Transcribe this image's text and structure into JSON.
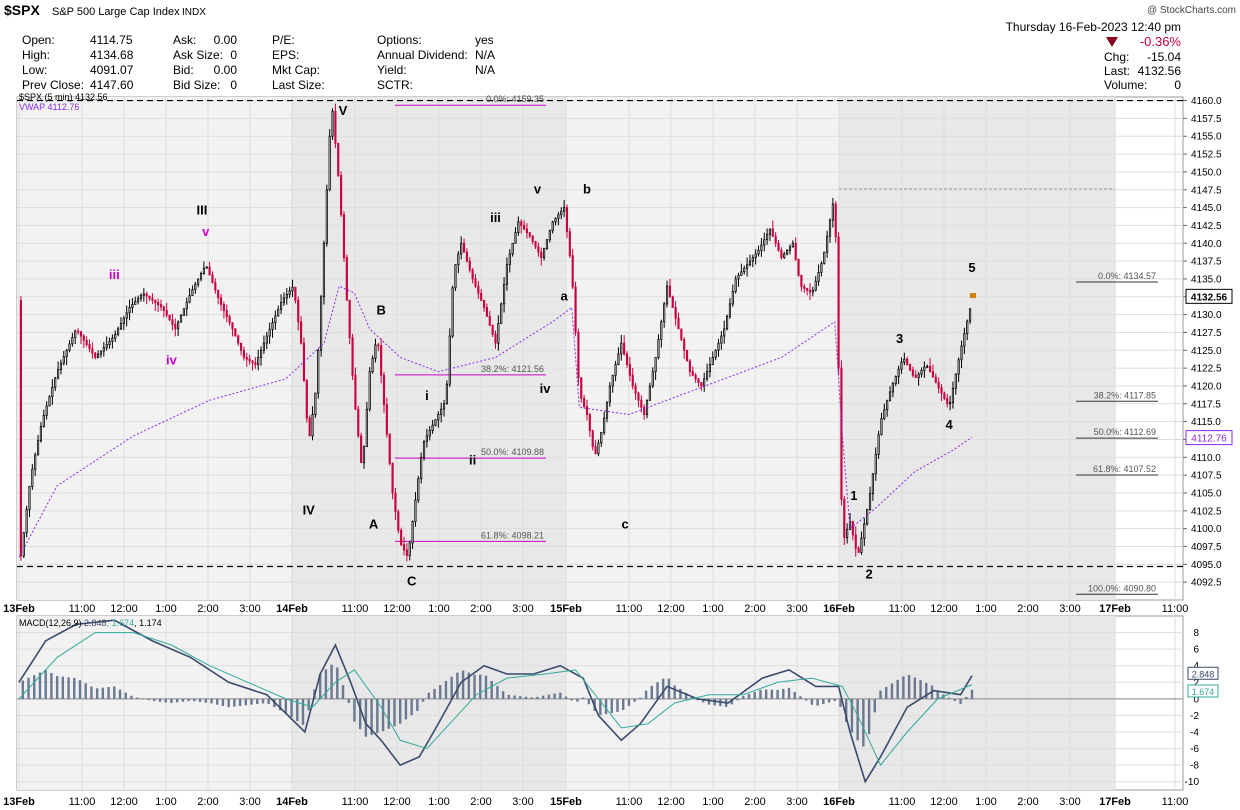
{
  "header": {
    "symbol": "$SPX",
    "name": "S&P 500 Large Cap Index",
    "exchange": "INDX",
    "watermark": "@ StockCharts.com",
    "datetime": "Thursday 16-Feb-2023 12:40 pm",
    "change_pct": "-0.36%",
    "chg_label": "Chg:",
    "chg_value": "-15.04",
    "last_label": "Last:",
    "last_value": "4132.56",
    "volume_label": "Volume:",
    "volume_value": "0",
    "stats": [
      {
        "label": "Open:",
        "value": "4114.75"
      },
      {
        "label": "High:",
        "value": "4134.68"
      },
      {
        "label": "Low:",
        "value": "4091.07"
      },
      {
        "label": "Prev Close:",
        "value": "4147.60"
      }
    ],
    "stats2": [
      {
        "label": "Ask:",
        "value": "0.00"
      },
      {
        "label": "Ask Size:",
        "value": "0"
      },
      {
        "label": "Bid:",
        "value": "0.00"
      },
      {
        "label": "Bid Size:",
        "value": "0"
      }
    ],
    "stats3": [
      {
        "label": "P/E:",
        "value": ""
      },
      {
        "label": "EPS:",
        "value": ""
      },
      {
        "label": "Mkt Cap:",
        "value": ""
      },
      {
        "label": "Last Size:",
        "value": ""
      }
    ],
    "stats4": [
      {
        "label": "Options:",
        "value": "yes"
      },
      {
        "label": "Annual Dividend:",
        "value": "N/A"
      },
      {
        "label": "Yield:",
        "value": "N/A"
      },
      {
        "label": "SCTR:",
        "value": ""
      }
    ]
  },
  "chart_data": {
    "type": "candlestick",
    "legend": [
      "$SPX (5 min) 4132.56",
      "VWAP 4112.76"
    ],
    "colors": {
      "up": "#000000",
      "down": "#c8003c",
      "vwap": "#8a2be2",
      "macd": "#3a4a6b",
      "signal": "#33aa99",
      "hist": "#6a7890",
      "fib": "#d000d0"
    },
    "price_axis": {
      "min": 4090,
      "max": 4160.5,
      "ticks": [
        "4092.5",
        "4095.0",
        "4097.5",
        "4100.0",
        "4102.5",
        "4105.0",
        "4107.5",
        "4110.0",
        "4112.5",
        "4115.0",
        "4117.5",
        "4120.0",
        "4122.5",
        "4125.0",
        "4127.5",
        "4130.0",
        "4132.5",
        "4135.0",
        "4137.5",
        "4140.0",
        "4142.5",
        "4145.0",
        "4147.5",
        "4150.0",
        "4152.5",
        "4155.0",
        "4157.5",
        "4160.0"
      ]
    },
    "last_price_label": "4132.56",
    "vwap_price_label": "4112.76",
    "x_labels": [
      "13Feb",
      "11:00",
      "12:00",
      "1:00",
      "2:00",
      "3:00",
      "14Feb",
      "11:00",
      "12:00",
      "1:00",
      "2:00",
      "3:00",
      "15Feb",
      "11:00",
      "12:00",
      "1:00",
      "2:00",
      "3:00",
      "16Feb",
      "11:00",
      "12:00",
      "1:00",
      "2:00",
      "3:00",
      "17Feb",
      "11:00"
    ],
    "h_lines": [
      4094.7,
      4160.0
    ],
    "prev_close_line": 4147.6,
    "price_path": [
      {
        "x": 0,
        "y": 4094
      },
      {
        "x": 6,
        "y": 4107
      },
      {
        "x": 12,
        "y": 4115
      },
      {
        "x": 20,
        "y": 4122
      },
      {
        "x": 30,
        "y": 4128
      },
      {
        "x": 40,
        "y": 4124
      },
      {
        "x": 50,
        "y": 4127
      },
      {
        "x": 58,
        "y": 4131
      },
      {
        "x": 65,
        "y": 4133
      },
      {
        "x": 75,
        "y": 4131
      },
      {
        "x": 82,
        "y": 4128
      },
      {
        "x": 90,
        "y": 4133
      },
      {
        "x": 98,
        "y": 4137
      },
      {
        "x": 105,
        "y": 4132
      },
      {
        "x": 112,
        "y": 4128
      },
      {
        "x": 118,
        "y": 4124
      },
      {
        "x": 124,
        "y": 4123
      },
      {
        "x": 130,
        "y": 4127
      },
      {
        "x": 138,
        "y": 4132
      },
      {
        "x": 144,
        "y": 4134
      },
      {
        "x": 148,
        "y": 4126
      },
      {
        "x": 152,
        "y": 4112
      },
      {
        "x": 156,
        "y": 4120
      },
      {
        "x": 160,
        "y": 4140
      },
      {
        "x": 164,
        "y": 4160
      },
      {
        "x": 168,
        "y": 4148
      },
      {
        "x": 172,
        "y": 4132
      },
      {
        "x": 176,
        "y": 4118
      },
      {
        "x": 180,
        "y": 4108
      },
      {
        "x": 184,
        "y": 4122
      },
      {
        "x": 188,
        "y": 4127
      },
      {
        "x": 192,
        "y": 4116
      },
      {
        "x": 196,
        "y": 4105
      },
      {
        "x": 200,
        "y": 4098
      },
      {
        "x": 204,
        "y": 4096
      },
      {
        "x": 208,
        "y": 4104
      },
      {
        "x": 212,
        "y": 4112
      },
      {
        "x": 218,
        "y": 4115
      },
      {
        "x": 224,
        "y": 4118
      },
      {
        "x": 228,
        "y": 4136
      },
      {
        "x": 232,
        "y": 4140
      },
      {
        "x": 238,
        "y": 4135
      },
      {
        "x": 244,
        "y": 4131
      },
      {
        "x": 250,
        "y": 4126
      },
      {
        "x": 256,
        "y": 4137
      },
      {
        "x": 262,
        "y": 4143
      },
      {
        "x": 268,
        "y": 4141
      },
      {
        "x": 274,
        "y": 4138
      },
      {
        "x": 280,
        "y": 4143
      },
      {
        "x": 286,
        "y": 4145
      },
      {
        "x": 290,
        "y": 4136
      },
      {
        "x": 294,
        "y": 4119
      },
      {
        "x": 298,
        "y": 4116
      },
      {
        "x": 302,
        "y": 4110
      },
      {
        "x": 306,
        "y": 4114
      },
      {
        "x": 310,
        "y": 4120
      },
      {
        "x": 316,
        "y": 4126
      },
      {
        "x": 322,
        "y": 4120
      },
      {
        "x": 328,
        "y": 4116
      },
      {
        "x": 334,
        "y": 4124
      },
      {
        "x": 340,
        "y": 4134
      },
      {
        "x": 346,
        "y": 4128
      },
      {
        "x": 352,
        "y": 4122
      },
      {
        "x": 358,
        "y": 4120
      },
      {
        "x": 364,
        "y": 4124
      },
      {
        "x": 370,
        "y": 4128
      },
      {
        "x": 376,
        "y": 4135
      },
      {
        "x": 382,
        "y": 4137
      },
      {
        "x": 388,
        "y": 4139
      },
      {
        "x": 394,
        "y": 4142
      },
      {
        "x": 400,
        "y": 4138
      },
      {
        "x": 406,
        "y": 4140
      },
      {
        "x": 410,
        "y": 4134
      },
      {
        "x": 416,
        "y": 4133
      },
      {
        "x": 422,
        "y": 4138
      },
      {
        "x": 428,
        "y": 4147
      },
      {
        "x": 432,
        "y": 4098
      },
      {
        "x": 436,
        "y": 4101
      },
      {
        "x": 440,
        "y": 4096
      },
      {
        "x": 446,
        "y": 4104
      },
      {
        "x": 452,
        "y": 4115
      },
      {
        "x": 458,
        "y": 4120
      },
      {
        "x": 464,
        "y": 4124
      },
      {
        "x": 470,
        "y": 4121
      },
      {
        "x": 476,
        "y": 4123
      },
      {
        "x": 482,
        "y": 4120
      },
      {
        "x": 488,
        "y": 4117
      },
      {
        "x": 494,
        "y": 4125
      },
      {
        "x": 500,
        "y": 4132
      }
    ],
    "vwap_path": [
      {
        "x": 0,
        "y": 4096
      },
      {
        "x": 20,
        "y": 4106
      },
      {
        "x": 60,
        "y": 4113
      },
      {
        "x": 100,
        "y": 4118
      },
      {
        "x": 140,
        "y": 4121
      },
      {
        "x": 160,
        "y": 4126
      },
      {
        "x": 168,
        "y": 4134
      },
      {
        "x": 176,
        "y": 4133
      },
      {
        "x": 184,
        "y": 4128
      },
      {
        "x": 200,
        "y": 4124
      },
      {
        "x": 220,
        "y": 4122
      },
      {
        "x": 250,
        "y": 4124
      },
      {
        "x": 280,
        "y": 4129
      },
      {
        "x": 290,
        "y": 4131
      },
      {
        "x": 294,
        "y": 4117
      },
      {
        "x": 320,
        "y": 4116
      },
      {
        "x": 360,
        "y": 4120
      },
      {
        "x": 400,
        "y": 4124
      },
      {
        "x": 428,
        "y": 4129
      },
      {
        "x": 432,
        "y": 4113
      },
      {
        "x": 436,
        "y": 4100
      },
      {
        "x": 450,
        "y": 4103
      },
      {
        "x": 470,
        "y": 4108
      },
      {
        "x": 490,
        "y": 4111
      },
      {
        "x": 500,
        "y": 4112.8
      }
    ],
    "fib_day2": [
      {
        "label": "0.0%: 4159.35",
        "y": 4159.35
      },
      {
        "label": "38.2%: 4121.56",
        "y": 4121.56
      },
      {
        "label": "50.0%: 4109.88",
        "y": 4109.88
      },
      {
        "label": "61.8%: 4098.21",
        "y": 4098.21
      }
    ],
    "fib_day4": [
      {
        "label": "0.0%: 4134.57",
        "y": 4134.57
      },
      {
        "label": "38.2%: 4117.85",
        "y": 4117.85
      },
      {
        "label": "50.0%: 4112.69",
        "y": 4112.69
      },
      {
        "label": "61.8%: 4107.52",
        "y": 4107.52
      },
      {
        "label": "100.0%: 4090.80",
        "y": 4090.8
      }
    ],
    "wave_labels": [
      {
        "text": "iii",
        "bar": 50,
        "y": 4135,
        "color": "#d000d0"
      },
      {
        "text": "iv",
        "bar": 80,
        "y": 4123,
        "color": "#d000d0"
      },
      {
        "text": "III",
        "bar": 96,
        "y": 4144,
        "color": "#000000"
      },
      {
        "text": "v",
        "bar": 98,
        "y": 4141,
        "color": "#d000d0"
      },
      {
        "text": "IV",
        "bar": 152,
        "y": 4102,
        "color": "#000000"
      },
      {
        "text": "V",
        "bar": 170,
        "y": 4158,
        "color": "#000000"
      },
      {
        "text": "A",
        "bar": 186,
        "y": 4100,
        "color": "#000000"
      },
      {
        "text": "B",
        "bar": 190,
        "y": 4130,
        "color": "#000000"
      },
      {
        "text": "C",
        "bar": 206,
        "y": 4092,
        "color": "#000000"
      },
      {
        "text": "i",
        "bar": 214,
        "y": 4118,
        "color": "#000000"
      },
      {
        "text": "ii",
        "bar": 238,
        "y": 4109,
        "color": "#000000"
      },
      {
        "text": "iii",
        "bar": 250,
        "y": 4143,
        "color": "#000000"
      },
      {
        "text": "iv",
        "bar": 276,
        "y": 4119,
        "color": "#000000"
      },
      {
        "text": "v",
        "bar": 272,
        "y": 4147,
        "color": "#000000"
      },
      {
        "text": "a",
        "bar": 286,
        "y": 4132,
        "color": "#000000"
      },
      {
        "text": "b",
        "bar": 298,
        "y": 4147,
        "color": "#000000"
      },
      {
        "text": "c",
        "bar": 318,
        "y": 4100,
        "color": "#000000"
      },
      {
        "text": "1",
        "bar": 438,
        "y": 4104,
        "color": "#000000"
      },
      {
        "text": "2",
        "bar": 446,
        "y": 4093,
        "color": "#000000"
      },
      {
        "text": "3",
        "bar": 462,
        "y": 4126,
        "color": "#000000"
      },
      {
        "text": "4",
        "bar": 488,
        "y": 4114,
        "color": "#000000"
      },
      {
        "text": "5",
        "bar": 500,
        "y": 4136,
        "color": "#000000"
      }
    ],
    "macd": {
      "legend": "MACD(12,26,9) 2.848, 1.674, 1.174",
      "legend_values": [
        "MACD(12,26,9)",
        "2.848",
        "1.674",
        "1.174"
      ],
      "axis": {
        "min": -11,
        "max": 10,
        "ticks": [
          "8",
          "6",
          "4",
          "2",
          "0",
          "-2",
          "-4",
          "-6",
          "-8",
          "-10"
        ]
      },
      "value_labels": [
        "2.848",
        "1.674"
      ],
      "macd_path": [
        {
          "x": 0,
          "y": 2
        },
        {
          "x": 14,
          "y": 7
        },
        {
          "x": 30,
          "y": 9
        },
        {
          "x": 50,
          "y": 9.5
        },
        {
          "x": 70,
          "y": 7
        },
        {
          "x": 90,
          "y": 5
        },
        {
          "x": 110,
          "y": 2
        },
        {
          "x": 130,
          "y": 0.5
        },
        {
          "x": 150,
          "y": -4
        },
        {
          "x": 158,
          "y": 3
        },
        {
          "x": 166,
          "y": 6.5
        },
        {
          "x": 174,
          "y": 2
        },
        {
          "x": 182,
          "y": -3
        },
        {
          "x": 190,
          "y": -5
        },
        {
          "x": 200,
          "y": -8
        },
        {
          "x": 210,
          "y": -7
        },
        {
          "x": 220,
          "y": -3
        },
        {
          "x": 232,
          "y": 2
        },
        {
          "x": 244,
          "y": 4
        },
        {
          "x": 256,
          "y": 3
        },
        {
          "x": 270,
          "y": 3
        },
        {
          "x": 284,
          "y": 4
        },
        {
          "x": 296,
          "y": 2.5
        },
        {
          "x": 304,
          "y": -2
        },
        {
          "x": 316,
          "y": -5
        },
        {
          "x": 326,
          "y": -3
        },
        {
          "x": 340,
          "y": 1.5
        },
        {
          "x": 356,
          "y": 0
        },
        {
          "x": 372,
          "y": -0.5
        },
        {
          "x": 390,
          "y": 2.5
        },
        {
          "x": 404,
          "y": 3.5
        },
        {
          "x": 418,
          "y": 1.5
        },
        {
          "x": 430,
          "y": 1.5
        },
        {
          "x": 436,
          "y": -4
        },
        {
          "x": 444,
          "y": -10
        },
        {
          "x": 452,
          "y": -7
        },
        {
          "x": 466,
          "y": -1
        },
        {
          "x": 480,
          "y": 1
        },
        {
          "x": 494,
          "y": 0.5
        },
        {
          "x": 500,
          "y": 2.8
        }
      ],
      "signal_path": [
        {
          "x": 0,
          "y": 0
        },
        {
          "x": 20,
          "y": 5
        },
        {
          "x": 40,
          "y": 8
        },
        {
          "x": 60,
          "y": 8
        },
        {
          "x": 80,
          "y": 6.5
        },
        {
          "x": 100,
          "y": 4
        },
        {
          "x": 120,
          "y": 2
        },
        {
          "x": 140,
          "y": 0
        },
        {
          "x": 154,
          "y": -1
        },
        {
          "x": 166,
          "y": 2
        },
        {
          "x": 176,
          "y": 3.5
        },
        {
          "x": 190,
          "y": -1
        },
        {
          "x": 200,
          "y": -5
        },
        {
          "x": 214,
          "y": -6
        },
        {
          "x": 226,
          "y": -3
        },
        {
          "x": 240,
          "y": 0.5
        },
        {
          "x": 256,
          "y": 2.5
        },
        {
          "x": 276,
          "y": 3
        },
        {
          "x": 292,
          "y": 3.5
        },
        {
          "x": 304,
          "y": 0
        },
        {
          "x": 316,
          "y": -3.5
        },
        {
          "x": 330,
          "y": -3
        },
        {
          "x": 344,
          "y": -0.5
        },
        {
          "x": 362,
          "y": 0.5
        },
        {
          "x": 380,
          "y": 0.5
        },
        {
          "x": 398,
          "y": 2
        },
        {
          "x": 416,
          "y": 2.5
        },
        {
          "x": 432,
          "y": 1.5
        },
        {
          "x": 440,
          "y": -2
        },
        {
          "x": 452,
          "y": -8
        },
        {
          "x": 466,
          "y": -4
        },
        {
          "x": 482,
          "y": 0
        },
        {
          "x": 500,
          "y": 1.7
        }
      ]
    }
  }
}
